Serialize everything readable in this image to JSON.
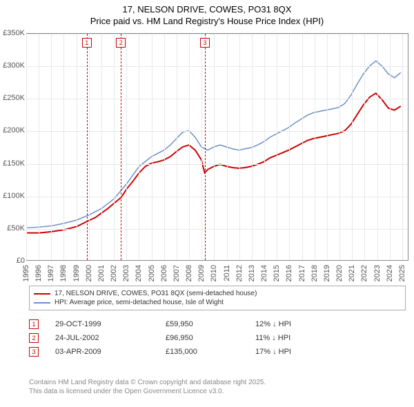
{
  "title_line1": "17, NELSON DRIVE, COWES, PO31 8QX",
  "title_line2": "Price paid vs. HM Land Registry's House Price Index (HPI)",
  "chart": {
    "type": "line",
    "x_min": 1995,
    "x_max": 2025.5,
    "y_min": 0,
    "y_max": 350000,
    "y_ticks": [
      0,
      50000,
      100000,
      150000,
      200000,
      250000,
      300000,
      350000
    ],
    "y_tick_labels": [
      "£0",
      "£50K",
      "£100K",
      "£150K",
      "£200K",
      "£250K",
      "£300K",
      "£350K"
    ],
    "x_ticks": [
      1995,
      1996,
      1997,
      1998,
      1999,
      2000,
      2001,
      2002,
      2003,
      2004,
      2005,
      2006,
      2007,
      2008,
      2009,
      2010,
      2011,
      2012,
      2013,
      2014,
      2015,
      2016,
      2017,
      2018,
      2019,
      2020,
      2021,
      2022,
      2023,
      2024,
      2025
    ],
    "grid_color": "#e8e8e8",
    "border_color": "#888888",
    "background_color": "#ffffff",
    "label_fontsize": 11,
    "label_color": "#555555",
    "series": [
      {
        "name": "property",
        "label": "17, NELSON DRIVE, COWES, PO31 8QX (semi-detached house)",
        "color": "#cc0000",
        "line_width": 2,
        "data": [
          [
            1995,
            42000
          ],
          [
            1996,
            42000
          ],
          [
            1997,
            44000
          ],
          [
            1998,
            47000
          ],
          [
            1999,
            52000
          ],
          [
            1999.83,
            59950
          ],
          [
            2000.5,
            66000
          ],
          [
            2001,
            73000
          ],
          [
            2001.5,
            80000
          ],
          [
            2002,
            88000
          ],
          [
            2002.56,
            96950
          ],
          [
            2003,
            110000
          ],
          [
            2003.5,
            122000
          ],
          [
            2004,
            135000
          ],
          [
            2004.5,
            145000
          ],
          [
            2005,
            150000
          ],
          [
            2005.5,
            152000
          ],
          [
            2006,
            155000
          ],
          [
            2006.5,
            160000
          ],
          [
            2007,
            168000
          ],
          [
            2007.5,
            175000
          ],
          [
            2008,
            178000
          ],
          [
            2008.5,
            170000
          ],
          [
            2009,
            155000
          ],
          [
            2009.26,
            135000
          ],
          [
            2009.5,
            140000
          ],
          [
            2010,
            145000
          ],
          [
            2010.5,
            148000
          ],
          [
            2011,
            145000
          ],
          [
            2011.5,
            143000
          ],
          [
            2012,
            142000
          ],
          [
            2012.5,
            143000
          ],
          [
            2013,
            145000
          ],
          [
            2013.5,
            148000
          ],
          [
            2014,
            152000
          ],
          [
            2014.5,
            158000
          ],
          [
            2015,
            162000
          ],
          [
            2015.5,
            166000
          ],
          [
            2016,
            170000
          ],
          [
            2016.5,
            175000
          ],
          [
            2017,
            180000
          ],
          [
            2017.5,
            185000
          ],
          [
            2018,
            188000
          ],
          [
            2018.5,
            190000
          ],
          [
            2019,
            192000
          ],
          [
            2019.5,
            194000
          ],
          [
            2020,
            196000
          ],
          [
            2020.5,
            200000
          ],
          [
            2021,
            210000
          ],
          [
            2021.5,
            225000
          ],
          [
            2022,
            240000
          ],
          [
            2022.5,
            252000
          ],
          [
            2023,
            258000
          ],
          [
            2023.5,
            248000
          ],
          [
            2024,
            235000
          ],
          [
            2024.5,
            232000
          ],
          [
            2025,
            238000
          ]
        ]
      },
      {
        "name": "hpi",
        "label": "HPI: Average price, semi-detached house, Isle of Wight",
        "color": "#6b8fc6",
        "line_width": 1.5,
        "data": [
          [
            1995,
            50000
          ],
          [
            1996,
            51000
          ],
          [
            1997,
            53000
          ],
          [
            1998,
            57000
          ],
          [
            1999,
            62000
          ],
          [
            2000,
            70000
          ],
          [
            2001,
            80000
          ],
          [
            2002,
            95000
          ],
          [
            2003,
            118000
          ],
          [
            2004,
            145000
          ],
          [
            2005,
            160000
          ],
          [
            2005.5,
            165000
          ],
          [
            2006,
            170000
          ],
          [
            2006.5,
            178000
          ],
          [
            2007,
            188000
          ],
          [
            2007.5,
            198000
          ],
          [
            2008,
            200000
          ],
          [
            2008.5,
            190000
          ],
          [
            2009,
            175000
          ],
          [
            2009.5,
            170000
          ],
          [
            2010,
            175000
          ],
          [
            2010.5,
            178000
          ],
          [
            2011,
            175000
          ],
          [
            2011.5,
            172000
          ],
          [
            2012,
            170000
          ],
          [
            2012.5,
            172000
          ],
          [
            2013,
            174000
          ],
          [
            2013.5,
            178000
          ],
          [
            2014,
            183000
          ],
          [
            2014.5,
            190000
          ],
          [
            2015,
            195000
          ],
          [
            2015.5,
            200000
          ],
          [
            2016,
            205000
          ],
          [
            2016.5,
            212000
          ],
          [
            2017,
            218000
          ],
          [
            2017.5,
            224000
          ],
          [
            2018,
            228000
          ],
          [
            2018.5,
            230000
          ],
          [
            2019,
            232000
          ],
          [
            2019.5,
            234000
          ],
          [
            2020,
            236000
          ],
          [
            2020.5,
            242000
          ],
          [
            2021,
            255000
          ],
          [
            2021.5,
            272000
          ],
          [
            2022,
            288000
          ],
          [
            2022.5,
            300000
          ],
          [
            2023,
            308000
          ],
          [
            2023.5,
            300000
          ],
          [
            2024,
            288000
          ],
          [
            2024.5,
            282000
          ],
          [
            2025,
            290000
          ]
        ]
      }
    ],
    "markers": [
      {
        "id": "1",
        "x": 1999.83,
        "color": "#cc0000"
      },
      {
        "id": "2",
        "x": 2002.56,
        "color": "#cc0000"
      },
      {
        "id": "3",
        "x": 2009.26,
        "color": "#cc0000"
      }
    ]
  },
  "legend": {
    "series1_label": "17, NELSON DRIVE, COWES, PO31 8QX (semi-detached house)",
    "series2_label": "HPI: Average price, semi-detached house, Isle of Wight"
  },
  "sales": [
    {
      "id": "1",
      "date": "29-OCT-1999",
      "price": "£59,950",
      "diff": "12% ↓ HPI"
    },
    {
      "id": "2",
      "date": "24-JUL-2002",
      "price": "£96,950",
      "diff": "11% ↓ HPI"
    },
    {
      "id": "3",
      "date": "03-APR-2009",
      "price": "£135,000",
      "diff": "17% ↓ HPI"
    }
  ],
  "attribution_line1": "Contains HM Land Registry data © Crown copyright and database right 2025.",
  "attribution_line2": "This data is licensed under the Open Government Licence v3.0."
}
